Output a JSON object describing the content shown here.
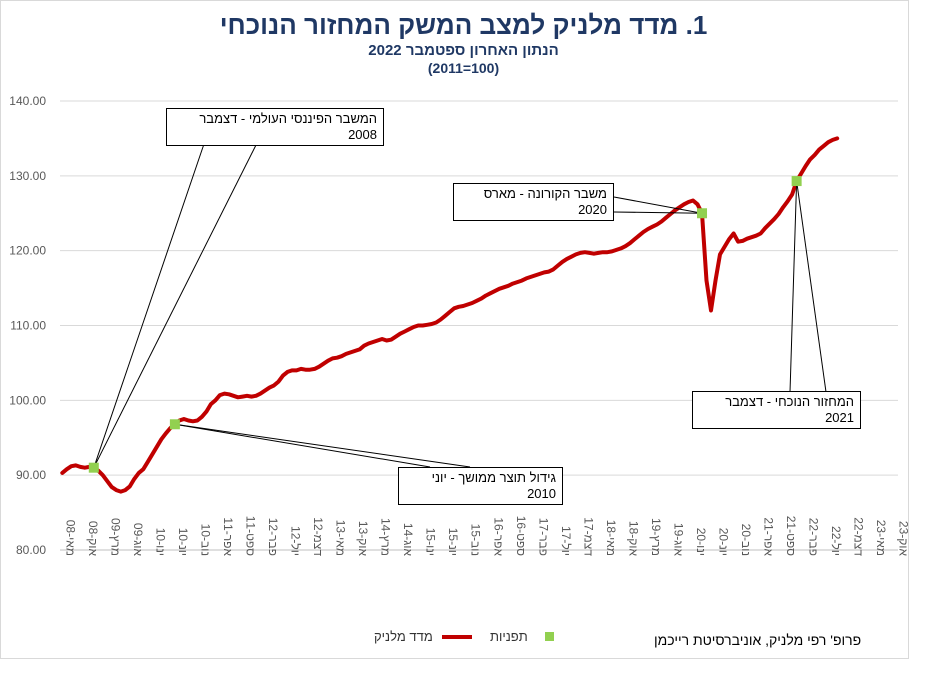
{
  "chart_data": {
    "type": "line",
    "title": "1. מדד מלניק למצב המשק המחזור הנוכחי",
    "subtitle": "הנתון האחרון ספטמבר 2022",
    "subtitle2": "(100=2011)",
    "ylim": [
      80,
      140
    ],
    "y_ticks": [
      "80.00",
      "90.00",
      "100.00",
      "110.00",
      "120.00",
      "130.00",
      "140.00"
    ],
    "x_ticks": [
      "מאי-08",
      "אוק-08",
      "מרץ-09",
      "אוג-09",
      "ינו-10",
      "יונ-10",
      "נוב-10",
      "אפר-11",
      "ספט-11",
      "פבר-12",
      "יול-12",
      "דצמ-12",
      "מאי-13",
      "אוק-13",
      "מרץ-14",
      "אוג-14",
      "ינו-15",
      "יונ-15",
      "נוב-15",
      "אפר-16",
      "ספט-16",
      "פבר-17",
      "יול-17",
      "דצמ-17",
      "מאי-18",
      "אוק-18",
      "מרץ-19",
      "אוג-19",
      "ינו-20",
      "יונ-20",
      "נוב-20",
      "אפר-21",
      "ספט-21",
      "פבר-22",
      "יול-22",
      "דצמ-22",
      "מאי-23",
      "אוק-23"
    ],
    "series": [
      {
        "name": "מדד מלניק",
        "color": "#c00000",
        "values": [
          [
            "2008-05",
            90.3
          ],
          [
            "2008-06",
            90.8
          ],
          [
            "2008-07",
            91.2
          ],
          [
            "2008-08",
            91.3
          ],
          [
            "2008-09",
            91.1
          ],
          [
            "2008-10",
            91.0
          ],
          [
            "2008-11",
            91.1
          ],
          [
            "2008-12",
            91.0
          ],
          [
            "2009-01",
            90.6
          ],
          [
            "2009-02",
            90.0
          ],
          [
            "2009-03",
            89.2
          ],
          [
            "2009-04",
            88.4
          ],
          [
            "2009-05",
            88.0
          ],
          [
            "2009-06",
            87.8
          ],
          [
            "2009-07",
            88.0
          ],
          [
            "2009-08",
            88.5
          ],
          [
            "2009-09",
            89.5
          ],
          [
            "2009-10",
            90.3
          ],
          [
            "2009-11",
            90.8
          ],
          [
            "2009-12",
            91.8
          ],
          [
            "2010-01",
            92.8
          ],
          [
            "2010-02",
            93.8
          ],
          [
            "2010-03",
            94.8
          ],
          [
            "2010-04",
            95.6
          ],
          [
            "2010-05",
            96.3
          ],
          [
            "2010-06",
            96.8
          ],
          [
            "2010-07",
            97.3
          ],
          [
            "2010-08",
            97.5
          ],
          [
            "2010-09",
            97.3
          ],
          [
            "2010-10",
            97.2
          ],
          [
            "2010-11",
            97.3
          ],
          [
            "2010-12",
            97.8
          ],
          [
            "2011-01",
            98.5
          ],
          [
            "2011-02",
            99.5
          ],
          [
            "2011-03",
            100.0
          ],
          [
            "2011-04",
            100.7
          ],
          [
            "2011-05",
            100.9
          ],
          [
            "2011-06",
            100.8
          ],
          [
            "2011-07",
            100.6
          ],
          [
            "2011-08",
            100.4
          ],
          [
            "2011-09",
            100.5
          ],
          [
            "2011-10",
            100.6
          ],
          [
            "2011-11",
            100.5
          ],
          [
            "2011-12",
            100.6
          ],
          [
            "2012-01",
            100.9
          ],
          [
            "2012-02",
            101.3
          ],
          [
            "2012-03",
            101.7
          ],
          [
            "2012-04",
            102.0
          ],
          [
            "2012-05",
            102.5
          ],
          [
            "2012-06",
            103.3
          ],
          [
            "2012-07",
            103.8
          ],
          [
            "2012-08",
            104.0
          ],
          [
            "2012-09",
            104.0
          ],
          [
            "2012-10",
            104.2
          ],
          [
            "2012-11",
            104.1
          ],
          [
            "2012-12",
            104.1
          ],
          [
            "2013-01",
            104.2
          ],
          [
            "2013-02",
            104.5
          ],
          [
            "2013-03",
            104.9
          ],
          [
            "2013-04",
            105.3
          ],
          [
            "2013-05",
            105.6
          ],
          [
            "2013-06",
            105.7
          ],
          [
            "2013-07",
            105.9
          ],
          [
            "2013-08",
            106.2
          ],
          [
            "2013-09",
            106.4
          ],
          [
            "2013-10",
            106.6
          ],
          [
            "2013-11",
            106.8
          ],
          [
            "2013-12",
            107.3
          ],
          [
            "2014-01",
            107.6
          ],
          [
            "2014-02",
            107.8
          ],
          [
            "2014-03",
            108.0
          ],
          [
            "2014-04",
            108.2
          ],
          [
            "2014-05",
            108.0
          ],
          [
            "2014-06",
            108.1
          ],
          [
            "2014-07",
            108.5
          ],
          [
            "2014-08",
            108.9
          ],
          [
            "2014-09",
            109.2
          ],
          [
            "2014-10",
            109.5
          ],
          [
            "2014-11",
            109.8
          ],
          [
            "2014-12",
            110.0
          ],
          [
            "2015-01",
            110.0
          ],
          [
            "2015-02",
            110.1
          ],
          [
            "2015-03",
            110.2
          ],
          [
            "2015-04",
            110.4
          ],
          [
            "2015-05",
            110.8
          ],
          [
            "2015-06",
            111.3
          ],
          [
            "2015-07",
            111.8
          ],
          [
            "2015-08",
            112.3
          ],
          [
            "2015-09",
            112.5
          ],
          [
            "2015-10",
            112.6
          ],
          [
            "2015-11",
            112.8
          ],
          [
            "2015-12",
            113.0
          ],
          [
            "2016-01",
            113.3
          ],
          [
            "2016-02",
            113.6
          ],
          [
            "2016-03",
            114.0
          ],
          [
            "2016-04",
            114.3
          ],
          [
            "2016-05",
            114.6
          ],
          [
            "2016-06",
            114.9
          ],
          [
            "2016-07",
            115.1
          ],
          [
            "2016-08",
            115.3
          ],
          [
            "2016-09",
            115.6
          ],
          [
            "2016-10",
            115.8
          ],
          [
            "2016-11",
            116.0
          ],
          [
            "2016-12",
            116.3
          ],
          [
            "2017-01",
            116.5
          ],
          [
            "2017-02",
            116.7
          ],
          [
            "2017-03",
            116.9
          ],
          [
            "2017-04",
            117.1
          ],
          [
            "2017-05",
            117.2
          ],
          [
            "2017-06",
            117.5
          ],
          [
            "2017-07",
            118.0
          ],
          [
            "2017-08",
            118.5
          ],
          [
            "2017-09",
            118.9
          ],
          [
            "2017-10",
            119.2
          ],
          [
            "2017-11",
            119.5
          ],
          [
            "2017-12",
            119.7
          ],
          [
            "2018-01",
            119.8
          ],
          [
            "2018-02",
            119.7
          ],
          [
            "2018-03",
            119.6
          ],
          [
            "2018-04",
            119.7
          ],
          [
            "2018-05",
            119.8
          ],
          [
            "2018-06",
            119.8
          ],
          [
            "2018-07",
            119.9
          ],
          [
            "2018-08",
            120.1
          ],
          [
            "2018-09",
            120.3
          ],
          [
            "2018-10",
            120.6
          ],
          [
            "2018-11",
            121.0
          ],
          [
            "2018-12",
            121.5
          ],
          [
            "2019-01",
            122.0
          ],
          [
            "2019-02",
            122.5
          ],
          [
            "2019-03",
            122.9
          ],
          [
            "2019-04",
            123.2
          ],
          [
            "2019-05",
            123.5
          ],
          [
            "2019-06",
            123.9
          ],
          [
            "2019-07",
            124.4
          ],
          [
            "2019-08",
            124.9
          ],
          [
            "2019-09",
            125.4
          ],
          [
            "2019-10",
            125.8
          ],
          [
            "2019-11",
            126.2
          ],
          [
            "2019-12",
            126.5
          ],
          [
            "2020-01",
            126.7
          ],
          [
            "2020-02",
            126.2
          ],
          [
            "2020-03",
            125.0
          ],
          [
            "2020-04",
            116.0
          ],
          [
            "2020-05",
            112.0
          ],
          [
            "2020-06",
            116.0
          ],
          [
            "2020-07",
            119.5
          ],
          [
            "2020-08",
            120.5
          ],
          [
            "2020-09",
            121.5
          ],
          [
            "2020-10",
            122.3
          ],
          [
            "2020-11",
            121.2
          ],
          [
            "2020-12",
            121.3
          ],
          [
            "2021-01",
            121.6
          ],
          [
            "2021-02",
            121.8
          ],
          [
            "2021-03",
            122.0
          ],
          [
            "2021-04",
            122.3
          ],
          [
            "2021-05",
            123.0
          ],
          [
            "2021-06",
            123.6
          ],
          [
            "2021-07",
            124.2
          ],
          [
            "2021-08",
            124.9
          ],
          [
            "2021-09",
            125.8
          ],
          [
            "2021-10",
            126.6
          ],
          [
            "2021-11",
            127.5
          ],
          [
            "2021-12",
            129.3
          ],
          [
            "2022-01",
            130.3
          ],
          [
            "2022-02",
            131.3
          ],
          [
            "2022-03",
            132.2
          ],
          [
            "2022-04",
            132.8
          ],
          [
            "2022-05",
            133.5
          ],
          [
            "2022-06",
            134.0
          ],
          [
            "2022-07",
            134.5
          ],
          [
            "2022-08",
            134.8
          ],
          [
            "2022-09",
            135.0
          ]
        ]
      },
      {
        "name": "תפניות",
        "color": "#92d050",
        "points": [
          [
            "2008-12",
            91.0
          ],
          [
            "2010-06",
            96.8
          ],
          [
            "2020-03",
            125.0
          ],
          [
            "2021-12",
            129.3
          ]
        ]
      }
    ],
    "annotations": [
      {
        "text1": "המשבר הפיננסי העולמי - דצמבר",
        "text2": "2008"
      },
      {
        "text1": "גידול תוצר ממושך - יוני",
        "text2": "2010"
      },
      {
        "text1": "משבר הקורונה - מארס",
        "text2": "2020"
      },
      {
        "text1": "המחזור הנוכחי - דצמבר",
        "text2": "2021"
      }
    ],
    "legend": {
      "line_label": "מדד מלניק",
      "marker_label": "תפניות",
      "position": "bottom"
    },
    "grid": true
  },
  "credit": "פרופ' רפי מלניק, אוניברסיטת רייכמן"
}
